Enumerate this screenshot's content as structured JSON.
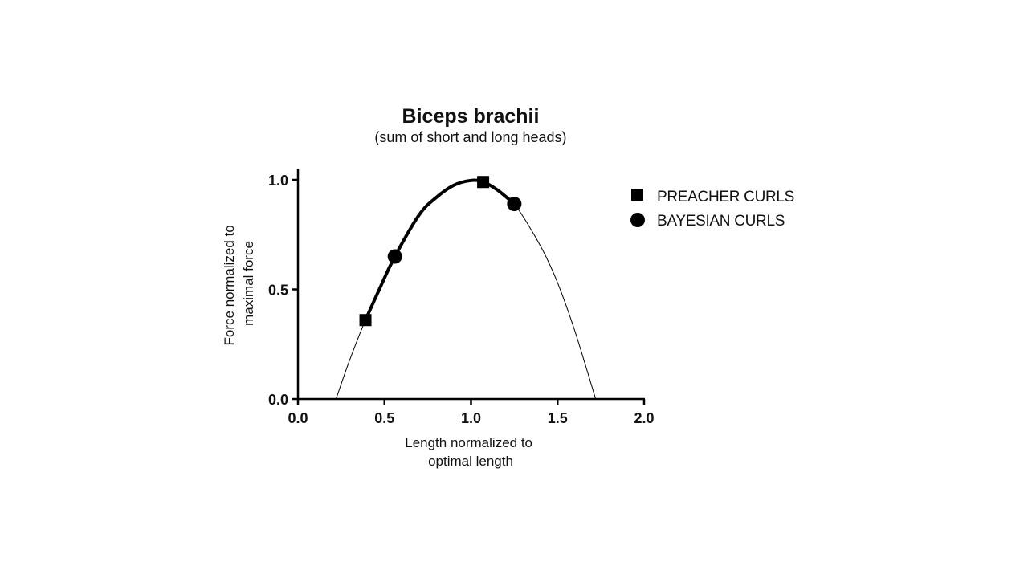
{
  "chart_data": {
    "type": "line",
    "title": "Biceps brachii",
    "subtitle": "(sum of short and long heads)",
    "xlabel_lines": [
      "Length normalized to",
      "optimal length"
    ],
    "ylabel_lines": [
      "Force normalized to",
      "maximal force"
    ],
    "xlim": [
      0,
      2.0
    ],
    "ylim": [
      0,
      1.0
    ],
    "x_ticks": [
      0.0,
      0.5,
      1.0,
      1.5,
      2.0
    ],
    "x_tick_labels": [
      "0.0",
      "0.5",
      "1.0",
      "1.5",
      "2.0"
    ],
    "y_ticks": [
      0.0,
      0.5,
      1.0
    ],
    "y_tick_labels": [
      "0.0",
      "0.5",
      "1.0"
    ],
    "grid": false,
    "legend_position": "right",
    "curve": {
      "x": [
        0.22,
        0.3,
        0.39,
        0.47,
        0.56,
        0.7,
        0.8,
        0.9,
        1.0,
        1.07,
        1.15,
        1.25,
        1.4,
        1.5,
        1.6,
        1.72
      ],
      "y": [
        0.0,
        0.18,
        0.36,
        0.5,
        0.65,
        0.84,
        0.92,
        0.975,
        0.997,
        0.99,
        0.955,
        0.89,
        0.7,
        0.53,
        0.31,
        0.0
      ]
    },
    "highlight_range": [
      0.39,
      1.25
    ],
    "series": [
      {
        "name": "PREACHER CURLS",
        "marker": "square",
        "x": [
          0.39,
          1.07
        ],
        "y": [
          0.36,
          0.99
        ]
      },
      {
        "name": "BAYESIAN CURLS",
        "marker": "circle",
        "x": [
          0.56,
          1.25
        ],
        "y": [
          0.65,
          0.89
        ]
      }
    ],
    "line_color": "#000000"
  }
}
